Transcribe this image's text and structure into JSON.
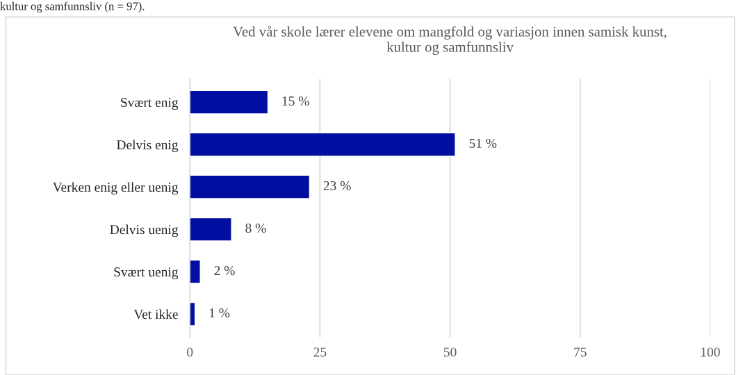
{
  "chart_data": {
    "type": "bar",
    "orientation": "horizontal",
    "title": "Ved vår skole lærer elevene om mangfold og variasjon innen samisk kunst,\nkultur og samfunnsliv",
    "annotations": [
      "kultur og samfunnsliv (n = 97)."
    ],
    "categories": [
      "Svært enig",
      "Delvis enig",
      "Verken enig eller uenig",
      "Delvis uenig",
      "Svært uenig",
      "Vet ikke"
    ],
    "values": [
      15,
      51,
      23,
      8,
      2,
      1
    ],
    "value_labels": [
      "15 %",
      "51 %",
      "23 %",
      "8 %",
      "2 %",
      "1 %"
    ],
    "color": "#000f9f",
    "xlim": [
      0,
      100
    ],
    "xticks": [
      0,
      25,
      50,
      75,
      100
    ],
    "grid": "x",
    "legend": false
  }
}
